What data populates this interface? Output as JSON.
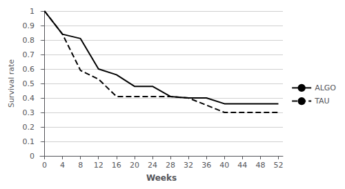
{
  "chart_data": {
    "type": "line",
    "xlabel": "Weeks",
    "ylabel": "Survival rate",
    "series": [
      {
        "name": "ALGO",
        "color": "#000000",
        "line_style": "solid",
        "x": [
          0,
          4,
          8,
          12,
          16,
          20,
          24,
          28,
          32,
          36,
          40,
          44,
          48,
          52
        ],
        "values": [
          1.0,
          0.84,
          0.81,
          0.6,
          0.56,
          0.48,
          0.48,
          0.41,
          0.4,
          0.4,
          0.36,
          0.36,
          0.36,
          0.36
        ]
      },
      {
        "name": "TAU",
        "color": "#000000",
        "line_style": "dashed",
        "x": [
          0,
          4,
          8,
          12,
          16,
          20,
          24,
          28,
          32,
          36,
          40,
          44,
          48,
          52
        ],
        "values": [
          1.0,
          0.84,
          0.59,
          0.53,
          0.41,
          0.41,
          0.41,
          0.41,
          0.4,
          0.35,
          0.3,
          0.3,
          0.3,
          0.3
        ]
      }
    ],
    "xlim": [
      -1,
      53
    ],
    "ylim": [
      0,
      1.0
    ],
    "xticks": [
      0,
      4,
      8,
      12,
      16,
      20,
      24,
      28,
      32,
      36,
      40,
      44,
      48,
      52
    ],
    "yticks": [
      0,
      0.1,
      0.2,
      0.3,
      0.4,
      0.5,
      0.6,
      0.7,
      0.8,
      0.9,
      1
    ],
    "grid": "y",
    "legend": "right"
  }
}
